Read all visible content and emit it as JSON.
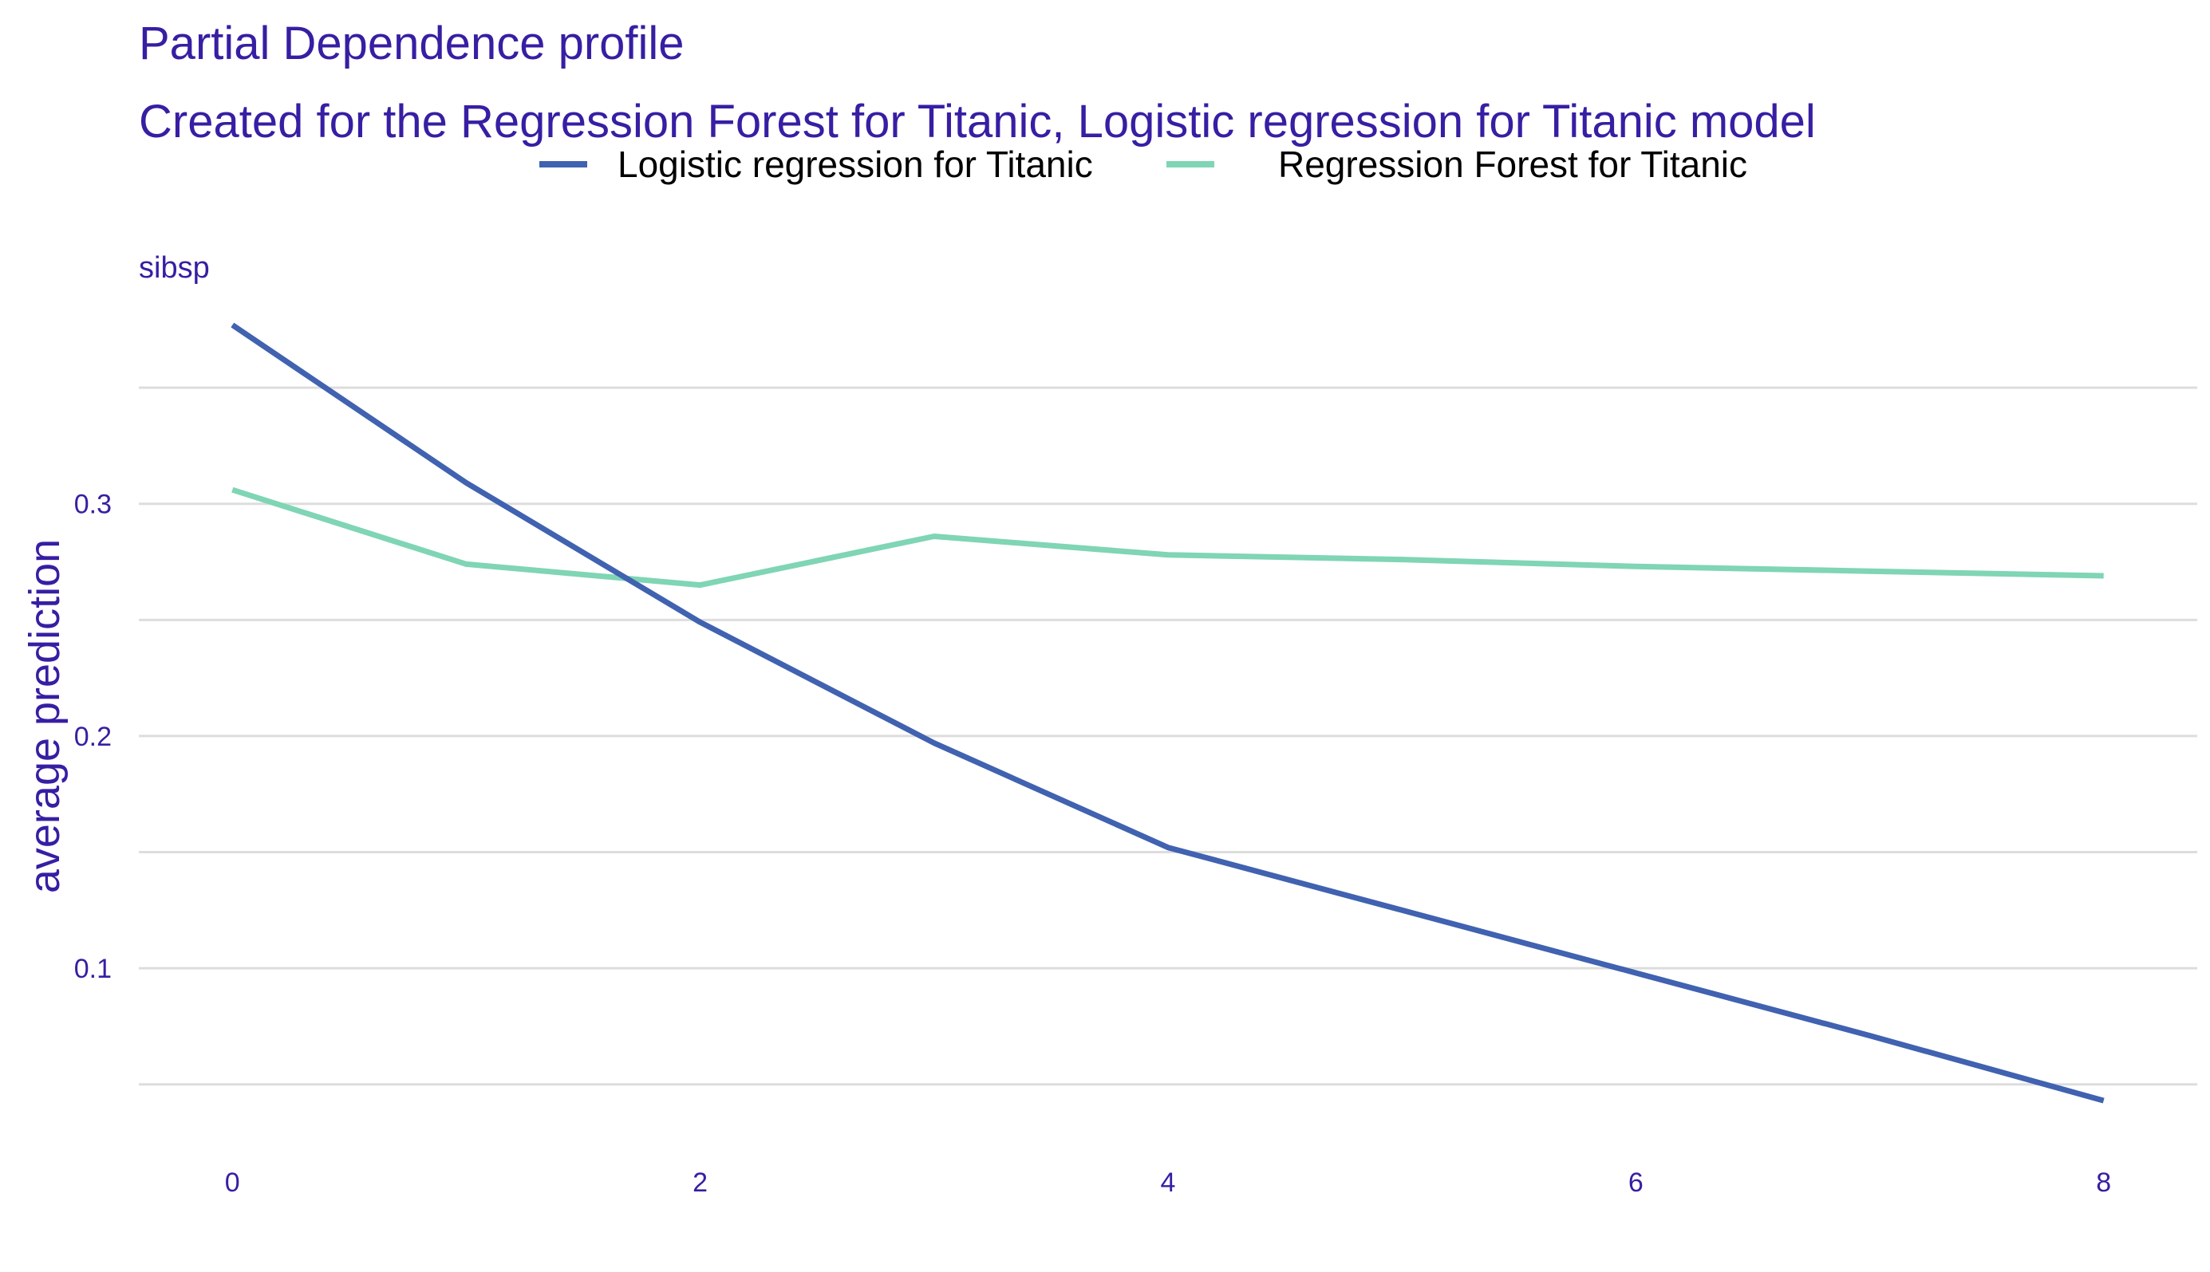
{
  "chart_data": {
    "type": "line",
    "title": "Partial Dependence profile",
    "subtitle": "Created for the Regression Forest for Titanic, Logistic regression for Titanic model",
    "facet_label": "sibsp",
    "xlabel": "",
    "ylabel": "average prediction",
    "xlim": [
      -0.4,
      8.4
    ],
    "ylim": [
      0.03,
      0.383
    ],
    "x_ticks": [
      0,
      2,
      4,
      6,
      8
    ],
    "y_ticks": [
      0.1,
      0.2,
      0.3
    ],
    "y_tick_labels": [
      "0.1",
      "0.2",
      "0.3"
    ],
    "y_minor_grid": [
      0.05,
      0.15,
      0.25,
      0.35
    ],
    "grid": true,
    "legend_position": "top",
    "series": [
      {
        "name": "Logistic regression for Titanic",
        "color": "#4062b0",
        "x": [
          0,
          1,
          2,
          3,
          4,
          5,
          6,
          7,
          8
        ],
        "y": [
          0.377,
          0.309,
          0.249,
          0.197,
          0.152,
          0.125,
          0.098,
          0.071,
          0.043
        ]
      },
      {
        "name": "Regression Forest for Titanic",
        "color": "#7fd5b4",
        "x": [
          0,
          1,
          2,
          3,
          4,
          5,
          6,
          7,
          8
        ],
        "y": [
          0.306,
          0.274,
          0.265,
          0.286,
          0.278,
          0.276,
          0.273,
          0.271,
          0.269
        ]
      }
    ]
  }
}
